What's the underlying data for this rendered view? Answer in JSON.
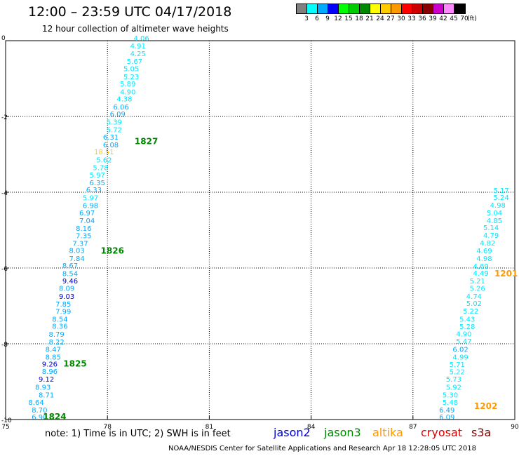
{
  "title": "12:00 – 23:59 UTC 04/17/2018",
  "subtitle": "12 hour collection of altimeter wave heights",
  "scale": {
    "labels": [
      "3",
      "6",
      "9",
      "12",
      "15",
      "18",
      "21",
      "24",
      "27",
      "30",
      "33",
      "36",
      "39",
      "42",
      "45",
      "70",
      "(ft)"
    ],
    "colors": [
      "#808080",
      "#00ffff",
      "#00aaff",
      "#0000ff",
      "#00ff00",
      "#00cc00",
      "#008800",
      "#ffff00",
      "#ffcc00",
      "#ff9900",
      "#ff0000",
      "#cc0000",
      "#880000",
      "#cc00cc",
      "#ff88ff",
      "#000000"
    ]
  },
  "note": "note:  1) Time is in UTC;  2) SWH is in feet",
  "legend": [
    {
      "label": "jason2",
      "color": "#0000cc"
    },
    {
      "label": "jason3",
      "color": "#008800"
    },
    {
      "label": "altika",
      "color": "#ff9900"
    },
    {
      "label": "cryosat",
      "color": "#dd0000"
    },
    {
      "label": "s3a",
      "color": "#880000"
    }
  ],
  "footer": "NOAA/NESDIS Center for Satellite Applications and Research    Apr 18 12:28:05 UTC 2018",
  "chart_data": {
    "type": "scatter",
    "title": "12:00 – 23:59 UTC 04/17/2018",
    "xlabel": "",
    "ylabel": "",
    "xlim": [
      75,
      90
    ],
    "ylim": [
      -10,
      0
    ],
    "xticks": [
      75,
      78,
      81,
      84,
      87,
      90
    ],
    "yticks": [
      0,
      -2,
      -4,
      -6,
      -8,
      -10
    ],
    "grid": true,
    "series": [
      {
        "name": "jason3",
        "points": [
          {
            "x": 76.0,
            "y": -9.93,
            "v": "6.90"
          },
          {
            "x": 76.0,
            "y": -9.74,
            "v": "8.70"
          },
          {
            "x": 75.9,
            "y": -9.54,
            "v": "8.64"
          },
          {
            "x": 76.2,
            "y": -9.34,
            "v": "8.71"
          },
          {
            "x": 76.1,
            "y": -9.14,
            "v": "8.93"
          },
          {
            "x": 76.2,
            "y": -8.93,
            "v": "9.12"
          },
          {
            "x": 76.3,
            "y": -8.72,
            "v": "8.96"
          },
          {
            "x": 76.3,
            "y": -8.53,
            "v": "9.26"
          },
          {
            "x": 76.4,
            "y": -8.34,
            "v": "8.85"
          },
          {
            "x": 76.4,
            "y": -8.14,
            "v": "8.47"
          },
          {
            "x": 76.5,
            "y": -7.94,
            "v": "8.22"
          },
          {
            "x": 76.5,
            "y": -7.74,
            "v": "8.79"
          },
          {
            "x": 76.6,
            "y": -7.53,
            "v": "8.36"
          },
          {
            "x": 76.6,
            "y": -7.34,
            "v": "8.54"
          },
          {
            "x": 76.7,
            "y": -7.14,
            "v": "7.99"
          },
          {
            "x": 76.7,
            "y": -6.94,
            "v": "7.85"
          },
          {
            "x": 76.8,
            "y": -6.74,
            "v": "9.03"
          },
          {
            "x": 76.8,
            "y": -6.53,
            "v": "8.09"
          },
          {
            "x": 76.9,
            "y": -6.33,
            "v": "9.46"
          },
          {
            "x": 76.9,
            "y": -6.14,
            "v": "8.54"
          },
          {
            "x": 76.9,
            "y": -5.93,
            "v": "8.67"
          },
          {
            "x": 77.1,
            "y": -5.74,
            "v": "7.84"
          },
          {
            "x": 77.1,
            "y": -5.53,
            "v": "8.03"
          },
          {
            "x": 77.2,
            "y": -5.34,
            "v": "7.37"
          },
          {
            "x": 77.3,
            "y": -5.14,
            "v": "7.35"
          },
          {
            "x": 77.3,
            "y": -4.94,
            "v": "8.16"
          },
          {
            "x": 77.4,
            "y": -4.74,
            "v": "7.04"
          },
          {
            "x": 77.4,
            "y": -4.54,
            "v": "6.97"
          },
          {
            "x": 77.5,
            "y": -4.34,
            "v": "6.98"
          },
          {
            "x": 77.5,
            "y": -4.14,
            "v": "5.97"
          },
          {
            "x": 77.6,
            "y": -3.93,
            "v": "6.33"
          },
          {
            "x": 77.7,
            "y": -3.74,
            "v": "6.35"
          },
          {
            "x": 77.7,
            "y": -3.54,
            "v": "5.97"
          },
          {
            "x": 77.8,
            "y": -3.34,
            "v": "5.78"
          },
          {
            "x": 77.9,
            "y": -3.14,
            "v": "5.62"
          },
          {
            "x": 77.9,
            "y": -2.93,
            "v": "18.51"
          },
          {
            "x": 78.1,
            "y": -2.74,
            "v": "6.08"
          },
          {
            "x": 78.1,
            "y": -2.54,
            "v": "6.31"
          },
          {
            "x": 78.2,
            "y": -2.34,
            "v": "5.72"
          },
          {
            "x": 78.2,
            "y": -2.14,
            "v": "5.39"
          },
          {
            "x": 78.3,
            "y": -1.93,
            "v": "6.09"
          },
          {
            "x": 78.4,
            "y": -1.74,
            "v": "6.06"
          },
          {
            "x": 78.5,
            "y": -1.53,
            "v": "4.38"
          },
          {
            "x": 78.6,
            "y": -1.34,
            "v": "4.90"
          },
          {
            "x": 78.6,
            "y": -1.13,
            "v": "5.89"
          },
          {
            "x": 78.7,
            "y": -0.94,
            "v": "5.23"
          },
          {
            "x": 78.7,
            "y": -0.73,
            "v": "5.05"
          },
          {
            "x": 78.8,
            "y": -0.54,
            "v": "5.67"
          },
          {
            "x": 78.9,
            "y": -0.33,
            "v": "4.25"
          },
          {
            "x": 78.9,
            "y": -0.13,
            "v": "4.91"
          },
          {
            "x": 79.0,
            "y": 0.07,
            "v": "4.06"
          }
        ],
        "time_labels": [
          {
            "x": 76.1,
            "y": -9.93,
            "label": "1824"
          },
          {
            "x": 76.7,
            "y": -8.53,
            "label": "1825"
          },
          {
            "x": 77.8,
            "y": -5.55,
            "label": "1826"
          },
          {
            "x": 78.8,
            "y": -2.66,
            "label": "1827"
          }
        ]
      },
      {
        "name": "altika",
        "points": [
          {
            "x": 88.0,
            "y": -9.93,
            "v": "6.09"
          },
          {
            "x": 88.0,
            "y": -9.74,
            "v": "6.49"
          },
          {
            "x": 88.1,
            "y": -9.54,
            "v": "5.48"
          },
          {
            "x": 88.1,
            "y": -9.34,
            "v": "5.30"
          },
          {
            "x": 88.2,
            "y": -9.14,
            "v": "5.92"
          },
          {
            "x": 88.2,
            "y": -8.93,
            "v": "5.73"
          },
          {
            "x": 88.3,
            "y": -8.73,
            "v": "5.22"
          },
          {
            "x": 88.3,
            "y": -8.54,
            "v": "5.71"
          },
          {
            "x": 88.4,
            "y": -8.34,
            "v": "4.99"
          },
          {
            "x": 88.4,
            "y": -8.14,
            "v": "6.02"
          },
          {
            "x": 88.5,
            "y": -7.93,
            "v": "5.47"
          },
          {
            "x": 88.5,
            "y": -7.73,
            "v": "4.90"
          },
          {
            "x": 88.6,
            "y": -7.54,
            "v": "5.28"
          },
          {
            "x": 88.6,
            "y": -7.34,
            "v": "5.43"
          },
          {
            "x": 88.7,
            "y": -7.13,
            "v": "5.22"
          },
          {
            "x": 88.8,
            "y": -6.93,
            "v": "5.02"
          },
          {
            "x": 88.8,
            "y": -6.74,
            "v": "4.74"
          },
          {
            "x": 88.9,
            "y": -6.53,
            "v": "5.26"
          },
          {
            "x": 88.9,
            "y": -6.33,
            "v": "5.21"
          },
          {
            "x": 89.0,
            "y": -6.13,
            "v": "4.49"
          },
          {
            "x": 89.0,
            "y": -5.94,
            "v": "4.69"
          },
          {
            "x": 89.1,
            "y": -5.74,
            "v": "4.98"
          },
          {
            "x": 89.1,
            "y": -5.54,
            "v": "4.69"
          },
          {
            "x": 89.2,
            "y": -5.33,
            "v": "4.82"
          },
          {
            "x": 89.3,
            "y": -5.13,
            "v": "4.79"
          },
          {
            "x": 89.3,
            "y": -4.93,
            "v": "5.14"
          },
          {
            "x": 89.4,
            "y": -4.74,
            "v": "4.85"
          },
          {
            "x": 89.4,
            "y": -4.54,
            "v": "5.04"
          },
          {
            "x": 89.5,
            "y": -4.33,
            "v": "4.98"
          },
          {
            "x": 89.6,
            "y": -4.13,
            "v": "5.24"
          },
          {
            "x": 89.6,
            "y": -3.94,
            "v": "5.17"
          }
        ],
        "time_labels": [
          {
            "x": 89.4,
            "y": -6.15,
            "label": "1201"
          },
          {
            "x": 88.8,
            "y": -9.65,
            "label": "1202"
          }
        ]
      }
    ]
  }
}
